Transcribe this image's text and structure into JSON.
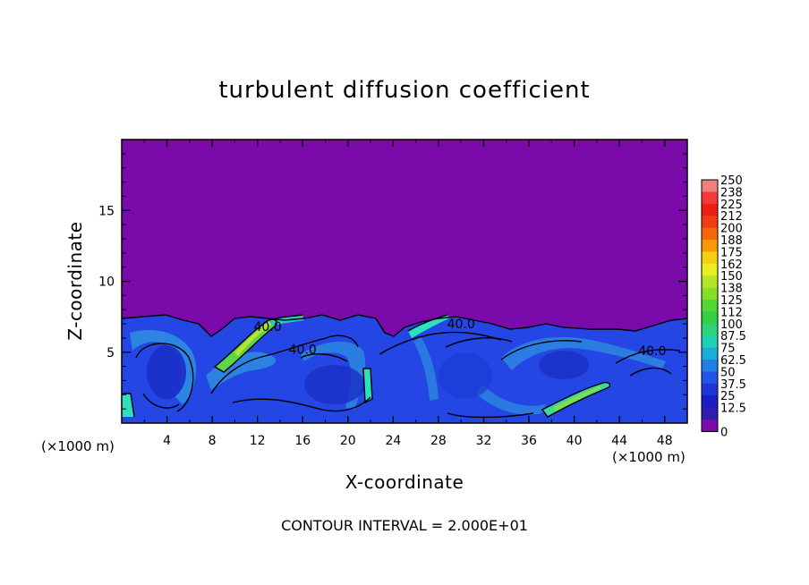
{
  "chart_data": {
    "type": "heatmap",
    "title": "turbulent diffusion coefficient",
    "xlabel": "X-coordinate",
    "ylabel": "Z-coordinate",
    "x_unit": "(×1000 m)",
    "z_unit": "(×1000 m)",
    "xlim": [
      0,
      50
    ],
    "ylim": [
      0,
      20
    ],
    "x_ticks": [
      "4",
      "8",
      "12",
      "16",
      "20",
      "24",
      "28",
      "32",
      "36",
      "40",
      "44",
      "48"
    ],
    "y_ticks": [
      "5",
      "10",
      "15"
    ],
    "colorbar_labels": [
      "250",
      "238",
      "225",
      "212",
      "200",
      "188",
      "175",
      "162",
      "150",
      "138",
      "125",
      "112",
      "100",
      "87.5",
      "75",
      "62.5",
      "50",
      "37.5",
      "25",
      "12.5",
      "0"
    ],
    "colorbar_colors": [
      "#f07f82",
      "#f23b3a",
      "#ee1f12",
      "#f03c10",
      "#f4680c",
      "#f89a08",
      "#f5cf14",
      "#e9ef1e",
      "#b5e526",
      "#84df28",
      "#50d932",
      "#33d044",
      "#2ad37c",
      "#1fd1b4",
      "#1aaed7",
      "#1f7fe3",
      "#2255e6",
      "#1f36d6",
      "#1a1ec2",
      "#341bb0",
      "#7a0aaa"
    ],
    "contour_labels": [
      {
        "text": "40.0",
        "x": 12.9,
        "z": 6.5
      },
      {
        "text": "40.0",
        "x": 16.0,
        "z": 4.9
      },
      {
        "text": "40.0",
        "x": 30.0,
        "z": 6.7
      },
      {
        "text": "40.0",
        "x": 46.9,
        "z": 4.8
      }
    ],
    "footer": "CONTOUR INTERVAL = 2.000E+01",
    "background_color": "#7a0aaa"
  }
}
